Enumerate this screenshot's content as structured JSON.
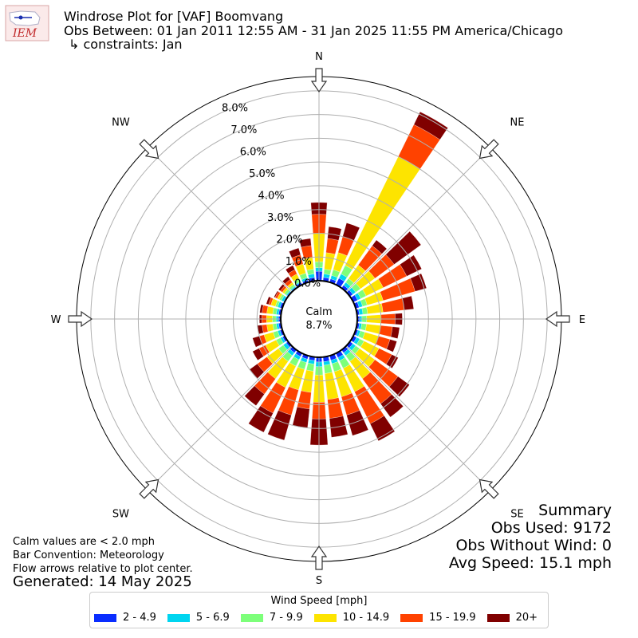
{
  "header": {
    "logo_text": "IEM",
    "title": "Windrose Plot for [VAF] Boomvang",
    "subtitle": "Obs Between: 01 Jan 2011 12:55 AM - 31 Jan 2025 11:55 PM America/Chicago",
    "constraints": "↳ constraints: Jan"
  },
  "notes": {
    "calm_note": "Calm values are < 2.0 mph",
    "bar_convention": "Bar Convention: Meteorology",
    "flow_arrows": "Flow arrows relative to plot center.",
    "generated": "Generated: 14 May 2025"
  },
  "summary": {
    "title": "Summary",
    "obs_used": "Obs Used: 9172",
    "obs_without_wind": "Obs Without Wind: 0",
    "avg_speed": "Avg Speed: 15.1 mph"
  },
  "legend": {
    "title": "Wind Speed [mph]",
    "items": [
      {
        "label": "2 - 4.9",
        "color": "#0a2dff"
      },
      {
        "label": "5 - 6.9",
        "color": "#00d5f0"
      },
      {
        "label": "7 - 9.9",
        "color": "#7dff7a"
      },
      {
        "label": "10 - 14.9",
        "color": "#fde400"
      },
      {
        "label": "15 - 19.9",
        "color": "#ff4200"
      },
      {
        "label": "20+",
        "color": "#800000"
      }
    ]
  },
  "chart_data": {
    "type": "windrose",
    "directions": [
      "N",
      "NE",
      "E",
      "SE",
      "S",
      "SW",
      "W",
      "NW"
    ],
    "calm_label": "Calm",
    "calm_value": "8.7%",
    "radial_ticks": [
      "0.0%",
      "1.0%",
      "2.0%",
      "3.0%",
      "4.0%",
      "5.0%",
      "6.0%",
      "7.0%",
      "8.0%"
    ],
    "radial_max": 8.6,
    "bin_degrees": 10,
    "speed_bins": [
      "2 - 4.9",
      "5 - 6.9",
      "7 - 9.9",
      "10 - 14.9",
      "15 - 19.9",
      "20+"
    ],
    "bars": [
      {
        "dir": 0,
        "cum": [
          0.4,
          0.55,
          0.8,
          2.0,
          2.8,
          3.3
        ]
      },
      {
        "dir": 10,
        "cum": [
          0.15,
          0.3,
          0.5,
          1.2,
          1.8,
          2.3
        ]
      },
      {
        "dir": 20,
        "cum": [
          0.15,
          0.3,
          0.55,
          1.3,
          2.0,
          2.6
        ]
      },
      {
        "dir": 30,
        "cum": [
          0.3,
          0.5,
          0.9,
          6.0,
          7.5,
          8.1
        ]
      },
      {
        "dir": 40,
        "cum": [
          0.15,
          0.3,
          0.5,
          1.2,
          2.2,
          2.5
        ]
      },
      {
        "dir": 50,
        "cum": [
          0.15,
          0.3,
          0.55,
          1.3,
          2.3,
          3.7
        ]
      },
      {
        "dir": 60,
        "cum": [
          0.2,
          0.35,
          0.6,
          1.4,
          2.5,
          3.2
        ]
      },
      {
        "dir": 70,
        "cum": [
          0.15,
          0.3,
          0.5,
          1.2,
          2.6,
          3.1
        ]
      },
      {
        "dir": 80,
        "cum": [
          0.1,
          0.25,
          0.45,
          1.1,
          2.0,
          2.4
        ]
      },
      {
        "dir": 90,
        "cum": [
          0.1,
          0.2,
          0.4,
          1.0,
          1.6,
          1.9
        ]
      },
      {
        "dir": 100,
        "cum": [
          0.1,
          0.2,
          0.4,
          1.0,
          1.5,
          1.8
        ]
      },
      {
        "dir": 110,
        "cum": [
          0.1,
          0.2,
          0.4,
          1.0,
          1.5,
          1.8
        ]
      },
      {
        "dir": 120,
        "cum": [
          0.15,
          0.3,
          0.5,
          1.2,
          1.8,
          2.1
        ]
      },
      {
        "dir": 130,
        "cum": [
          0.15,
          0.3,
          0.5,
          1.3,
          2.5,
          3.1
        ]
      },
      {
        "dir": 140,
        "cum": [
          0.15,
          0.3,
          0.6,
          1.5,
          2.8,
          3.5
        ]
      },
      {
        "dir": 150,
        "cum": [
          0.2,
          0.35,
          0.7,
          1.8,
          3.3,
          4.1
        ]
      },
      {
        "dir": 160,
        "cum": [
          0.2,
          0.35,
          0.7,
          1.8,
          2.6,
          3.5
        ]
      },
      {
        "dir": 170,
        "cum": [
          0.2,
          0.35,
          0.7,
          1.8,
          2.6,
          3.4
        ]
      },
      {
        "dir": 180,
        "cum": [
          0.2,
          0.4,
          0.75,
          1.9,
          2.6,
          3.7
        ]
      },
      {
        "dir": 190,
        "cum": [
          0.15,
          0.3,
          0.6,
          1.5,
          2.2,
          3.0
        ]
      },
      {
        "dir": 200,
        "cum": [
          0.15,
          0.3,
          0.6,
          1.5,
          2.6,
          3.7
        ]
      },
      {
        "dir": 210,
        "cum": [
          0.15,
          0.3,
          0.6,
          1.6,
          2.8,
          3.7
        ]
      },
      {
        "dir": 220,
        "cum": [
          0.15,
          0.3,
          0.6,
          1.5,
          2.3,
          2.9
        ]
      },
      {
        "dir": 230,
        "cum": [
          0.1,
          0.25,
          0.5,
          1.1,
          1.6,
          2.0
        ]
      },
      {
        "dir": 240,
        "cum": [
          0.1,
          0.2,
          0.4,
          0.9,
          1.2,
          1.5
        ]
      },
      {
        "dir": 250,
        "cum": [
          0.1,
          0.2,
          0.4,
          0.8,
          1.0,
          1.3
        ]
      },
      {
        "dir": 260,
        "cum": [
          0.1,
          0.2,
          0.35,
          0.6,
          0.8,
          1.0
        ]
      },
      {
        "dir": 270,
        "cum": [
          0.1,
          0.2,
          0.35,
          0.6,
          0.8,
          0.9
        ]
      },
      {
        "dir": 280,
        "cum": [
          0.1,
          0.2,
          0.35,
          0.6,
          0.8,
          0.9
        ]
      },
      {
        "dir": 290,
        "cum": [
          0.1,
          0.2,
          0.3,
          0.5,
          0.6,
          0.7
        ]
      },
      {
        "dir": 300,
        "cum": [
          0.05,
          0.15,
          0.25,
          0.35,
          0.45,
          0.5
        ]
      },
      {
        "dir": 310,
        "cum": [
          0.05,
          0.1,
          0.2,
          0.3,
          0.4,
          0.5
        ]
      },
      {
        "dir": 320,
        "cum": [
          0.05,
          0.1,
          0.2,
          0.3,
          0.45,
          0.6
        ]
      },
      {
        "dir": 330,
        "cum": [
          0.1,
          0.15,
          0.3,
          0.5,
          0.7,
          0.9
        ]
      },
      {
        "dir": 340,
        "cum": [
          0.1,
          0.2,
          0.4,
          0.8,
          1.2,
          1.5
        ]
      },
      {
        "dir": 350,
        "cum": [
          0.15,
          0.3,
          0.5,
          1.0,
          1.5,
          1.8
        ]
      }
    ]
  }
}
